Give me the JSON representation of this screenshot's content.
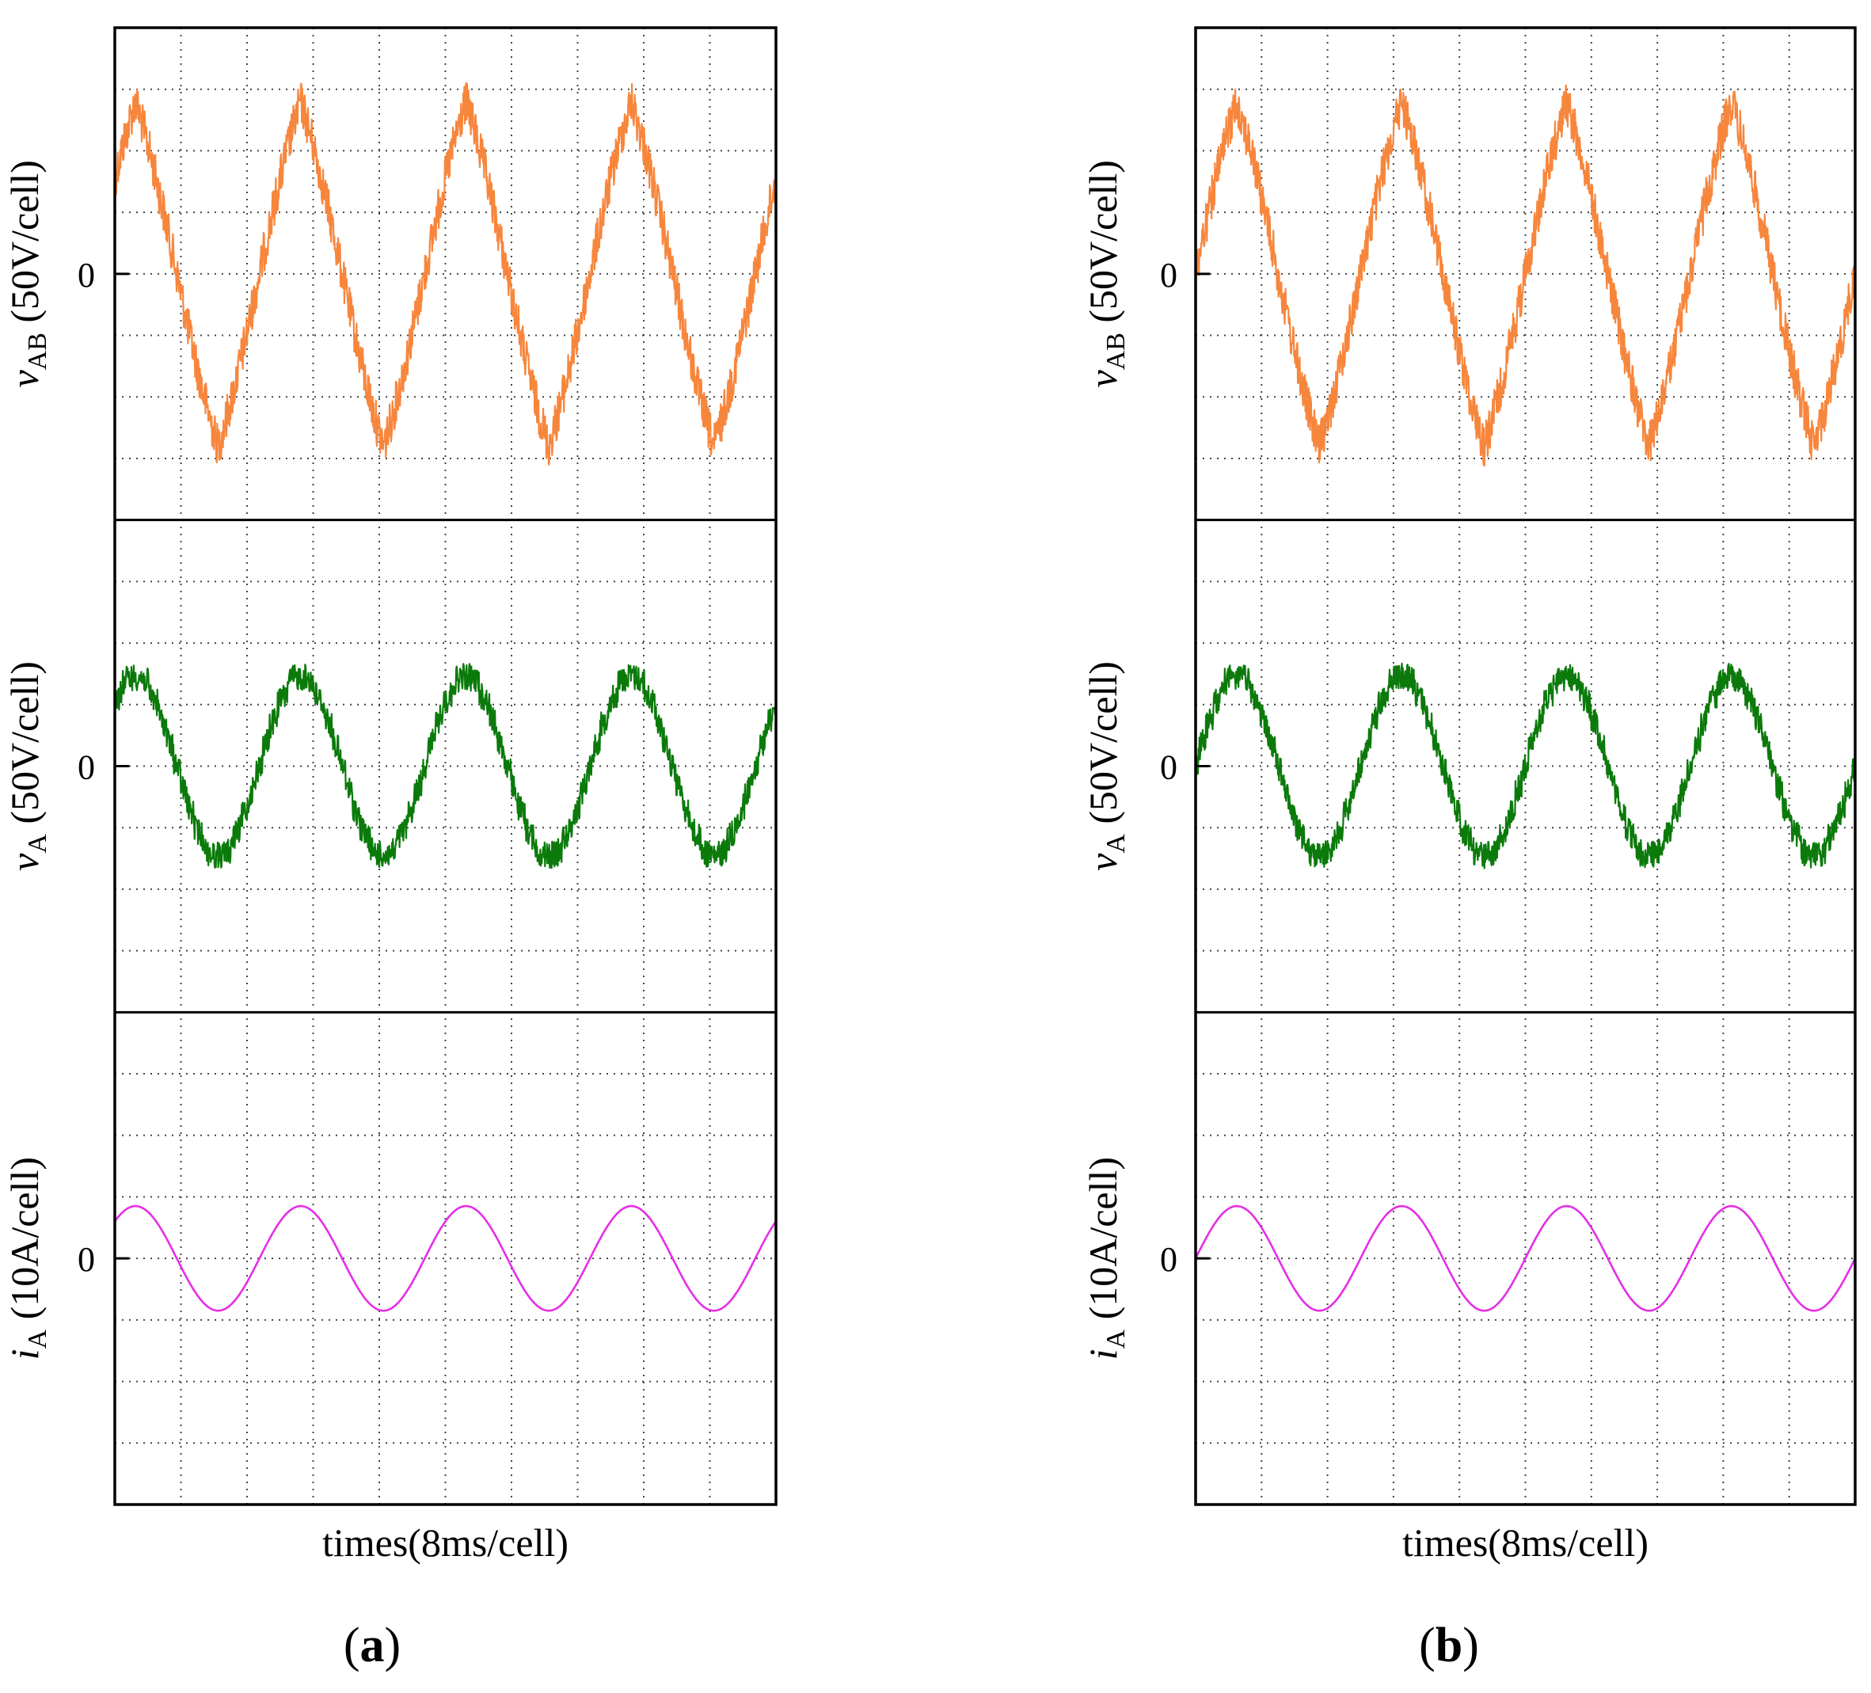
{
  "figure": {
    "panels": [
      {
        "id": "a",
        "caption": "a",
        "xlabel": "times(8ms/cell)",
        "grid": {
          "columns": 10,
          "rows_per_channel": 8
        },
        "phase_deg": 45,
        "channels": [
          {
            "name": "vAB",
            "symbol": "v",
            "subscript": "AB",
            "unit": "(50V/cell)",
            "zero_label": "0",
            "color": "#f7863d",
            "waveform": "triangle-like, noisy",
            "amplitude_cells": 2.8,
            "noise_cells": 0.35
          },
          {
            "name": "vA",
            "symbol": "v",
            "subscript": "A",
            "unit": "(50V/cell)",
            "zero_label": "0",
            "color": "#0b7a0b",
            "waveform": "stepped multilevel, noisy",
            "amplitude_cells": 1.45,
            "noise_cells": 0.22
          },
          {
            "name": "iA",
            "symbol": "i",
            "subscript": "A",
            "unit": "(10A/cell)",
            "zero_label": "0",
            "color": "#e62ee6",
            "waveform": "sinusoid",
            "amplitude_cells": 0.85,
            "noise_cells": 0
          }
        ]
      },
      {
        "id": "b",
        "caption": "b",
        "xlabel": "times(8ms/cell)",
        "grid": {
          "columns": 10,
          "rows_per_channel": 8
        },
        "phase_deg": 0,
        "channels": [
          {
            "name": "vAB",
            "symbol": "v",
            "subscript": "AB",
            "unit": "(50V/cell)",
            "zero_label": "0",
            "color": "#f7863d",
            "waveform": "triangle-like, noisy",
            "amplitude_cells": 2.8,
            "noise_cells": 0.35
          },
          {
            "name": "vA",
            "symbol": "v",
            "subscript": "A",
            "unit": "(50V/cell)",
            "zero_label": "0",
            "color": "#0b7a0b",
            "waveform": "stepped multilevel, noisy",
            "amplitude_cells": 1.45,
            "noise_cells": 0.22
          },
          {
            "name": "iA",
            "symbol": "i",
            "subscript": "A",
            "unit": "(10A/cell)",
            "zero_label": "0",
            "color": "#e62ee6",
            "waveform": "sinusoid",
            "amplitude_cells": 0.85,
            "noise_cells": 0
          }
        ]
      }
    ]
  },
  "chart_data": [
    {
      "type": "line",
      "title": "(a)",
      "xlabel": "times(8ms/cell)",
      "x_unit": "ms",
      "x_range": [
        0,
        80
      ],
      "fundamental_period_ms": 20,
      "series": [
        {
          "name": "vAB",
          "ylabel": "vAB (50V/cell)",
          "y_unit": "V",
          "y_range": [
            -200,
            200
          ],
          "zero": 0,
          "approx_peak": 140,
          "waveform": "noisy triangle-like"
        },
        {
          "name": "vA",
          "ylabel": "vA (50V/cell)",
          "y_unit": "V",
          "y_range": [
            -200,
            200
          ],
          "zero": 0,
          "approx_peak": 72,
          "waveform": "noisy stepped"
        },
        {
          "name": "iA",
          "ylabel": "iA (10A/cell)",
          "y_unit": "A",
          "y_range": [
            -40,
            40
          ],
          "zero": 0,
          "approx_peak": 8.5,
          "waveform": "sinusoid"
        }
      ]
    },
    {
      "type": "line",
      "title": "(b)",
      "xlabel": "times(8ms/cell)",
      "x_unit": "ms",
      "x_range": [
        0,
        80
      ],
      "fundamental_period_ms": 20,
      "series": [
        {
          "name": "vAB",
          "ylabel": "vAB (50V/cell)",
          "y_unit": "V",
          "y_range": [
            -200,
            200
          ],
          "zero": 0,
          "approx_peak": 140,
          "waveform": "noisy triangle-like"
        },
        {
          "name": "vA",
          "ylabel": "vA (50V/cell)",
          "y_unit": "V",
          "y_range": [
            -200,
            200
          ],
          "zero": 0,
          "approx_peak": 72,
          "waveform": "noisy stepped"
        },
        {
          "name": "iA",
          "ylabel": "iA (10A/cell)",
          "y_unit": "A",
          "y_range": [
            -40,
            40
          ],
          "zero": 0,
          "approx_peak": 8.5,
          "waveform": "sinusoid"
        }
      ]
    }
  ]
}
